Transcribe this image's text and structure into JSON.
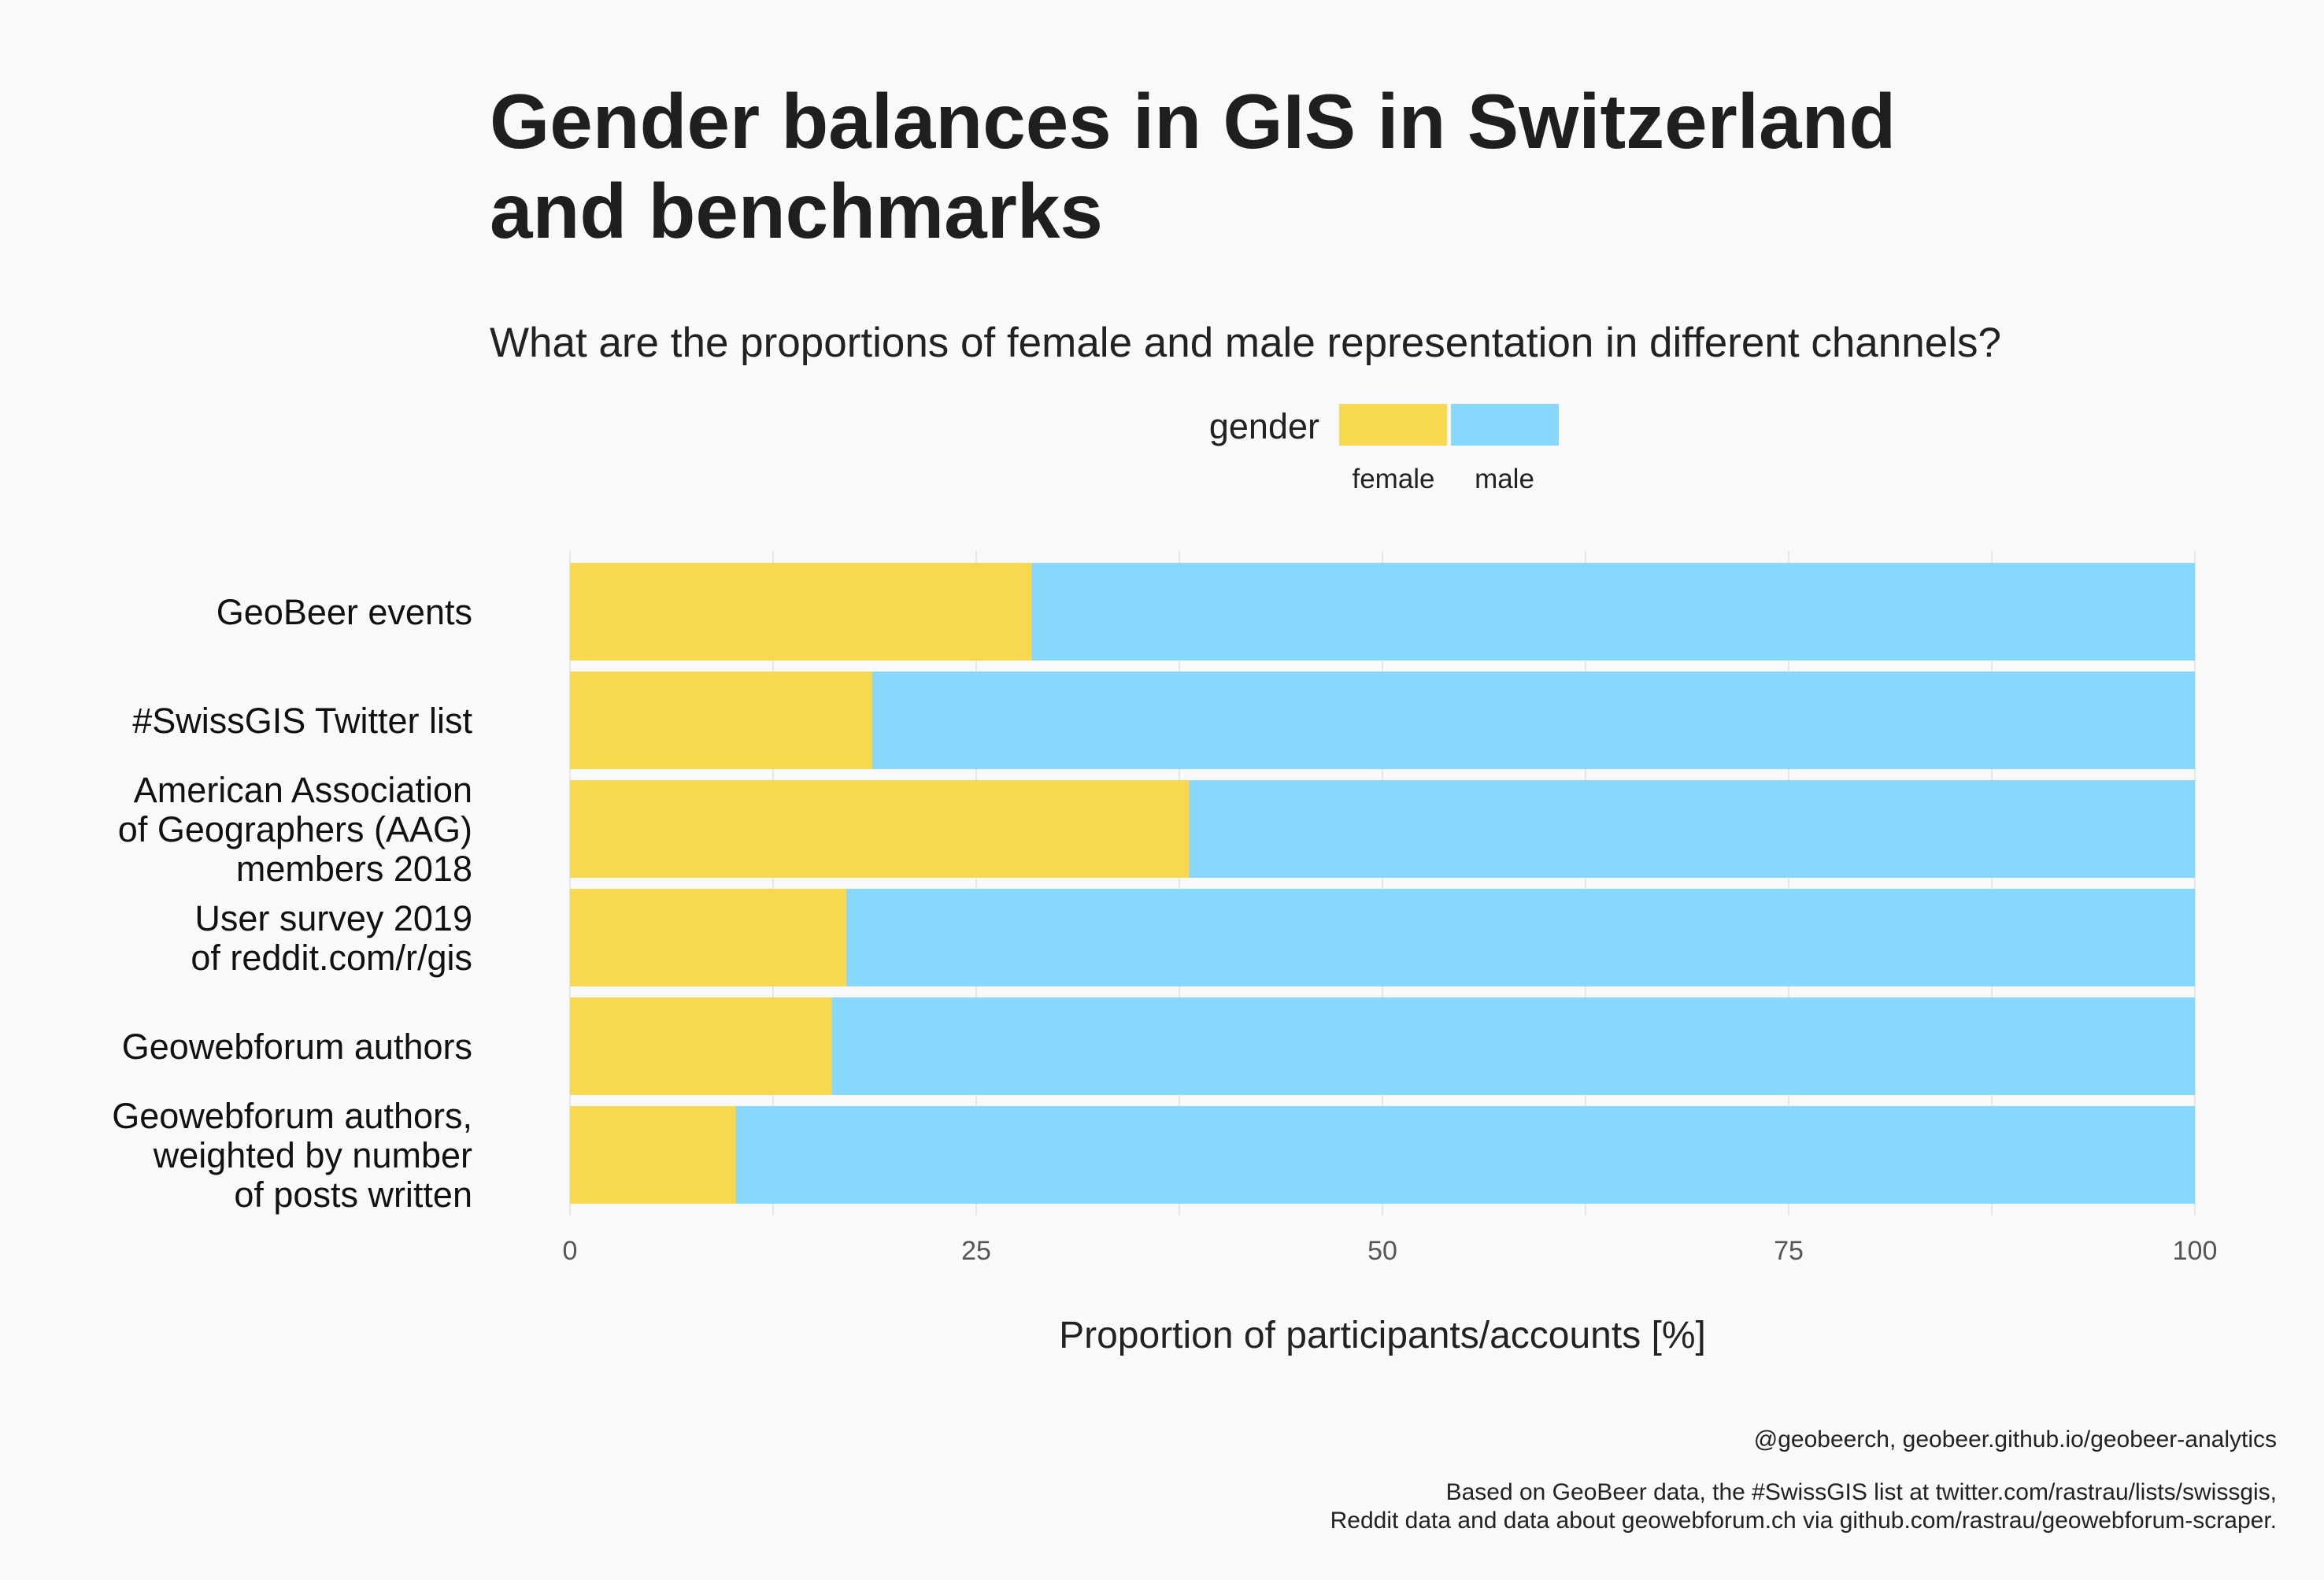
{
  "chart_data": {
    "type": "bar",
    "orientation": "horizontal",
    "stacked": true,
    "title_lines": [
      "Gender balances in GIS in Switzerland",
      "and benchmarks"
    ],
    "subtitle": "What are the proportions of female and male representation in different channels?",
    "legend": {
      "title": "gender",
      "placement": "top",
      "entries": [
        "female",
        "male"
      ]
    },
    "categories": [
      {
        "lines": [
          "GeoBeer events"
        ]
      },
      {
        "lines": [
          "#SwissGIS Twitter list"
        ]
      },
      {
        "lines": [
          "American Association",
          "of Geographers (AAG)",
          "members 2018"
        ]
      },
      {
        "lines": [
          "User survey 2019",
          "of reddit.com/r/gis"
        ]
      },
      {
        "lines": [
          "Geowebforum authors"
        ]
      },
      {
        "lines": [
          "Geowebforum authors,",
          "weighted by number",
          "of posts written"
        ]
      }
    ],
    "series": [
      {
        "name": "female",
        "color": "#f8d84f",
        "values": [
          28.4,
          18.6,
          38.1,
          17.0,
          16.1,
          10.2
        ]
      },
      {
        "name": "male",
        "color": "#87d8fc",
        "values": [
          71.6,
          81.4,
          61.9,
          83.0,
          83.9,
          89.8
        ]
      }
    ],
    "xlabel": "Proportion of participants/accounts [%]",
    "xlim": [
      0,
      100
    ],
    "xticks": [
      0,
      25,
      50,
      75,
      100
    ],
    "grid": true,
    "caption_lines": [
      "@geobeerch, geobeer.github.io/geobeer-analytics",
      "",
      "Based on GeoBeer data, the #SwissGIS list at twitter.com/rastrau/lists/swissgis,",
      "Reddit data and data about geowebforum.ch via github.com/rastrau/geowebforum-scraper."
    ]
  }
}
